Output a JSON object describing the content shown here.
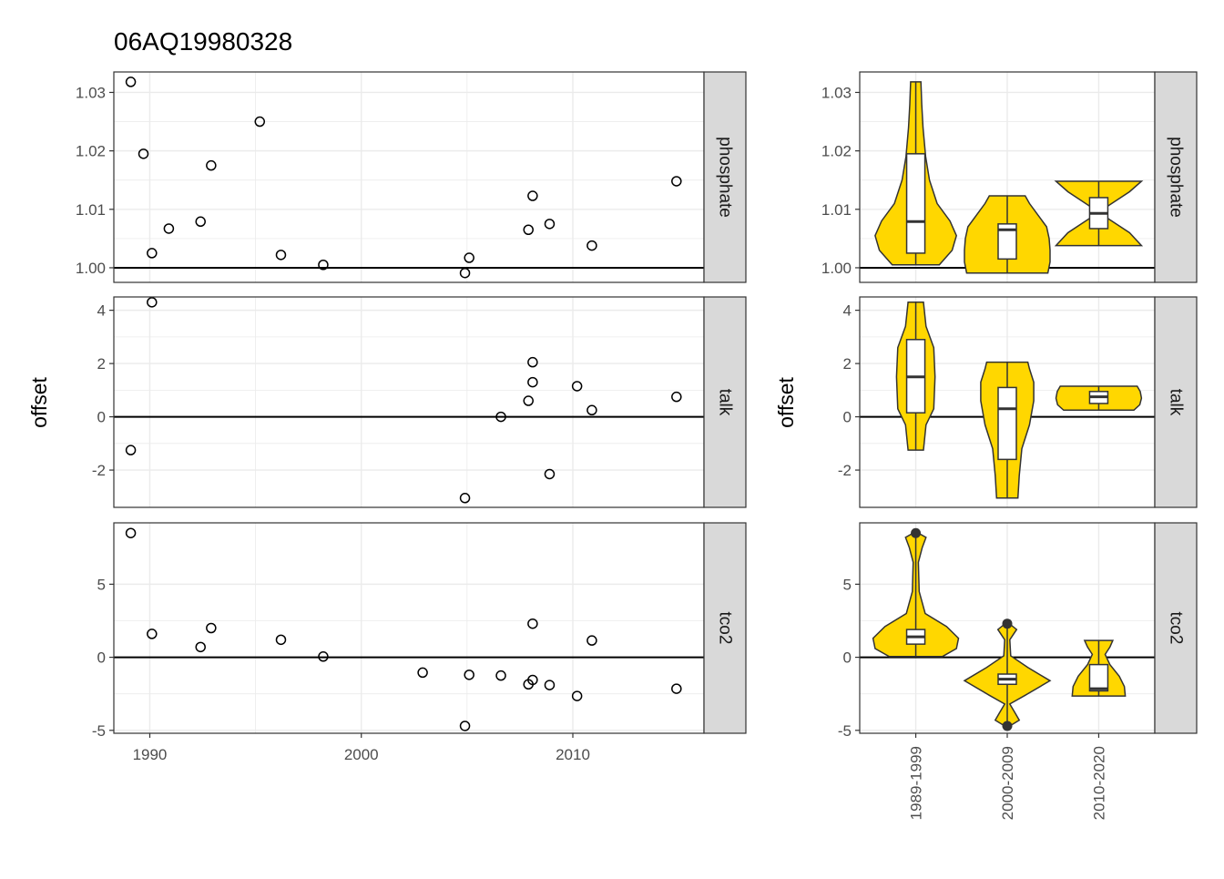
{
  "title": "06AQ19980328",
  "colors": {
    "violin_fill": "#FFD700",
    "outline": "#333333",
    "strip_bg": "#D9D9D9",
    "grid": "#EBEBEB"
  },
  "chart_data": [
    {
      "type": "scatter",
      "ylabel": "offset",
      "xlabel": "",
      "x_ticks": [
        1990,
        2000,
        2010
      ],
      "xlim": [
        1988.3,
        2016.2
      ],
      "hline": {
        "phosphate": 1,
        "talk": 0,
        "tco2": 0
      },
      "facets": [
        {
          "name": "phosphate",
          "ylim": [
            0.9975,
            1.0335
          ],
          "y_ticks": [
            1.0,
            1.01,
            1.02,
            1.03
          ],
          "y_tick_labels": [
            "1.00",
            "1.01",
            "1.02",
            "1.03"
          ],
          "points": [
            [
              1989.1,
              1.0318
            ],
            [
              1989.7,
              1.0195
            ],
            [
              1990.1,
              1.0025
            ],
            [
              1990.9,
              1.0067
            ],
            [
              1992.4,
              1.0079
            ],
            [
              1992.9,
              1.0175
            ],
            [
              1995.2,
              1.025
            ],
            [
              1996.2,
              1.0022
            ],
            [
              1998.2,
              1.0005
            ],
            [
              2004.9,
              0.9991
            ],
            [
              2005.1,
              1.0017
            ],
            [
              2007.9,
              1.0065
            ],
            [
              2008.1,
              1.0123
            ],
            [
              2008.9,
              1.0075
            ],
            [
              2010.9,
              1.0038
            ],
            [
              2014.9,
              1.0148
            ]
          ]
        },
        {
          "name": "talk",
          "ylim": [
            -3.4,
            4.5
          ],
          "y_ticks": [
            -2,
            0,
            2,
            4
          ],
          "y_tick_labels": [
            "-2",
            "0",
            "2",
            "4"
          ],
          "points": [
            [
              1989.1,
              -1.25
            ],
            [
              1990.1,
              4.3
            ],
            [
              2004.9,
              -3.05
            ],
            [
              2006.6,
              0.0
            ],
            [
              2007.9,
              0.6
            ],
            [
              2008.1,
              2.05
            ],
            [
              2008.1,
              1.3
            ],
            [
              2008.9,
              -2.15
            ],
            [
              2010.2,
              1.15
            ],
            [
              2010.9,
              0.25
            ],
            [
              2014.9,
              0.75
            ]
          ]
        },
        {
          "name": "tco2",
          "ylim": [
            -5.2,
            9.2
          ],
          "y_ticks": [
            -5,
            0,
            5
          ],
          "y_tick_labels": [
            "-5",
            "0",
            "5"
          ],
          "points": [
            [
              1989.1,
              8.5
            ],
            [
              1990.1,
              1.6
            ],
            [
              1992.4,
              0.7
            ],
            [
              1992.9,
              2.0
            ],
            [
              1996.2,
              1.2
            ],
            [
              1998.2,
              0.05
            ],
            [
              2002.9,
              -1.05
            ],
            [
              2005.1,
              -1.2
            ],
            [
              2006.6,
              -1.25
            ],
            [
              2007.9,
              -1.85
            ],
            [
              2008.1,
              2.3
            ],
            [
              2008.1,
              -1.55
            ],
            [
              2008.9,
              -1.9
            ],
            [
              2010.2,
              -2.65
            ],
            [
              2010.9,
              1.15
            ],
            [
              2014.9,
              -2.15
            ],
            [
              2004.9,
              -4.7
            ]
          ]
        }
      ]
    },
    {
      "type": "violin",
      "ylabel": "offset",
      "xlabel": "",
      "categories": [
        "1989-1999",
        "2000-2009",
        "2010-2020"
      ],
      "hline": {
        "phosphate": 1,
        "talk": 0,
        "tco2": 0
      },
      "facets": [
        {
          "name": "phosphate",
          "ylim": [
            0.9975,
            1.0335
          ],
          "y_ticks": [
            1.0,
            1.01,
            1.02,
            1.03
          ],
          "y_tick_labels": [
            "1.00",
            "1.01",
            "1.02",
            "1.03"
          ],
          "groups": [
            {
              "min": 1.0005,
              "max": 1.0318,
              "q1": 1.0025,
              "median": 1.0079,
              "q3": 1.0195,
              "outliers": [],
              "profile": [
                [
                  1.0005,
                  0.55
                ],
                [
                  1.003,
                  0.85
                ],
                [
                  1.0055,
                  0.95
                ],
                [
                  1.008,
                  0.8
                ],
                [
                  1.011,
                  0.5
                ],
                [
                  1.015,
                  0.32
                ],
                [
                  1.019,
                  0.23
                ],
                [
                  1.024,
                  0.17
                ],
                [
                  1.028,
                  0.14
                ],
                [
                  1.0318,
                  0.12
                ]
              ]
            },
            {
              "min": 0.9991,
              "max": 1.0123,
              "q1": 1.0015,
              "median": 1.0065,
              "q3": 1.0075,
              "outliers": [],
              "profile": [
                [
                  0.9991,
                  0.95
                ],
                [
                  1.001,
                  1.0
                ],
                [
                  1.003,
                  1.0
                ],
                [
                  1.005,
                  0.98
                ],
                [
                  1.007,
                  0.92
                ],
                [
                  1.009,
                  0.72
                ],
                [
                  1.011,
                  0.52
                ],
                [
                  1.0123,
                  0.42
                ]
              ]
            },
            {
              "min": 1.0038,
              "max": 1.0148,
              "q1": 1.0067,
              "median": 1.0093,
              "q3": 1.012,
              "outliers": [],
              "profile": [
                [
                  1.0038,
                  1.0
                ],
                [
                  1.006,
                  0.72
                ],
                [
                  1.0085,
                  0.2
                ],
                [
                  1.0105,
                  0.2
                ],
                [
                  1.013,
                  0.72
                ],
                [
                  1.0148,
                  1.0
                ]
              ]
            }
          ]
        },
        {
          "name": "talk",
          "ylim": [
            -3.4,
            4.5
          ],
          "y_ticks": [
            -2,
            0,
            2,
            4
          ],
          "y_tick_labels": [
            "-2",
            "0",
            "2",
            "4"
          ],
          "groups": [
            {
              "min": -1.25,
              "max": 4.3,
              "q1": 0.15,
              "median": 1.5,
              "q3": 2.9,
              "outliers": [],
              "profile": [
                [
                  -1.25,
                  0.18
                ],
                [
                  -0.3,
                  0.24
                ],
                [
                  0.3,
                  0.42
                ],
                [
                  1.5,
                  0.45
                ],
                [
                  2.6,
                  0.42
                ],
                [
                  3.4,
                  0.24
                ],
                [
                  4.3,
                  0.18
                ]
              ]
            },
            {
              "min": -3.05,
              "max": 2.05,
              "q1": -1.6,
              "median": 0.3,
              "q3": 1.1,
              "outliers": [],
              "profile": [
                [
                  -3.05,
                  0.25
                ],
                [
                  -2.2,
                  0.28
                ],
                [
                  -1.2,
                  0.34
                ],
                [
                  -0.3,
                  0.52
                ],
                [
                  0.6,
                  0.62
                ],
                [
                  1.3,
                  0.62
                ],
                [
                  1.8,
                  0.52
                ],
                [
                  2.05,
                  0.48
                ]
              ]
            },
            {
              "min": 0.25,
              "max": 1.15,
              "q1": 0.5,
              "median": 0.75,
              "q3": 0.95,
              "outliers": [],
              "profile": [
                [
                  0.25,
                  0.82
                ],
                [
                  0.45,
                  0.96
                ],
                [
                  0.7,
                  1.0
                ],
                [
                  0.95,
                  0.97
                ],
                [
                  1.15,
                  0.9
                ]
              ]
            }
          ]
        },
        {
          "name": "tco2",
          "ylim": [
            -5.2,
            9.2
          ],
          "y_ticks": [
            -5,
            0,
            5
          ],
          "y_tick_labels": [
            "-5",
            "0",
            "5"
          ],
          "groups": [
            {
              "min": 0.05,
              "max": 8.5,
              "q1": 0.9,
              "median": 1.4,
              "q3": 1.9,
              "outliers": [
                8.5
              ],
              "profile": [
                [
                  0.05,
                  0.62
                ],
                [
                  0.6,
                  0.95
                ],
                [
                  1.3,
                  1.0
                ],
                [
                  2.1,
                  0.72
                ],
                [
                  3.0,
                  0.22
                ],
                [
                  4.5,
                  0.08
                ],
                [
                  6.5,
                  0.06
                ],
                [
                  7.5,
                  0.15
                ],
                [
                  8.2,
                  0.24
                ],
                [
                  8.5,
                  0.06
                ]
              ]
            },
            {
              "min": -4.7,
              "max": 2.3,
              "q1": -1.85,
              "median": -1.5,
              "q3": -1.15,
              "outliers": [
                2.3,
                -4.7
              ],
              "profile": [
                [
                  -4.7,
                  0.06
                ],
                [
                  -4.3,
                  0.28
                ],
                [
                  -3.8,
                  0.18
                ],
                [
                  -3.2,
                  0.06
                ],
                [
                  -2.6,
                  0.42
                ],
                [
                  -1.6,
                  1.0
                ],
                [
                  -0.7,
                  0.48
                ],
                [
                  0.1,
                  0.08
                ],
                [
                  1.2,
                  0.06
                ],
                [
                  1.9,
                  0.22
                ],
                [
                  2.3,
                  0.05
                ]
              ]
            },
            {
              "min": -2.65,
              "max": 1.15,
              "q1": -2.3,
              "median": -2.15,
              "q3": -0.5,
              "outliers": [],
              "profile": [
                [
                  -2.65,
                  0.62
                ],
                [
                  -2.0,
                  0.6
                ],
                [
                  -1.3,
                  0.48
                ],
                [
                  -0.5,
                  0.26
                ],
                [
                  0.2,
                  0.15
                ],
                [
                  0.7,
                  0.26
                ],
                [
                  1.15,
                  0.33
                ]
              ]
            }
          ]
        }
      ]
    }
  ]
}
